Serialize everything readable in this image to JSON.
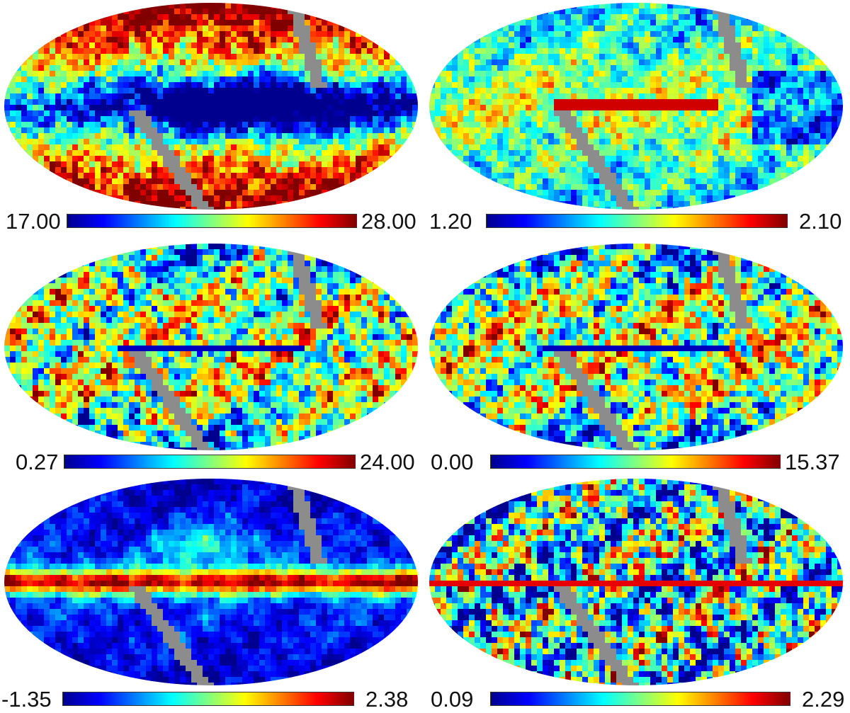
{
  "colormap": {
    "name": "jet",
    "stops": [
      "#00008f",
      "#0000ff",
      "#0080ff",
      "#00ffff",
      "#80ff80",
      "#ffff00",
      "#ff8000",
      "#ff0000",
      "#800000"
    ]
  },
  "mask_color": "#8c8c8c",
  "panels": [
    {
      "id": "top-left",
      "colorbar": {
        "min_label": "17.00",
        "max_label": "28.00"
      },
      "pattern": "low-band"
    },
    {
      "id": "top-right",
      "colorbar": {
        "min_label": "1.20",
        "max_label": "2.10"
      },
      "pattern": "mid-high-thin-plane"
    },
    {
      "id": "middle-left",
      "colorbar": {
        "min_label": "0.27",
        "max_label": "24.00"
      },
      "pattern": "speckle-low-plane"
    },
    {
      "id": "middle-right",
      "colorbar": {
        "min_label": "0.00",
        "max_label": "15.37"
      },
      "pattern": "speckle-low-plane"
    },
    {
      "id": "bottom-left",
      "colorbar": {
        "min_label": "-1.35",
        "max_label": "2.38"
      },
      "pattern": "strong-plane"
    },
    {
      "id": "bottom-right",
      "colorbar": {
        "min_label": "0.09",
        "max_label": "2.29"
      },
      "pattern": "patchy-thin-plane"
    }
  ]
}
